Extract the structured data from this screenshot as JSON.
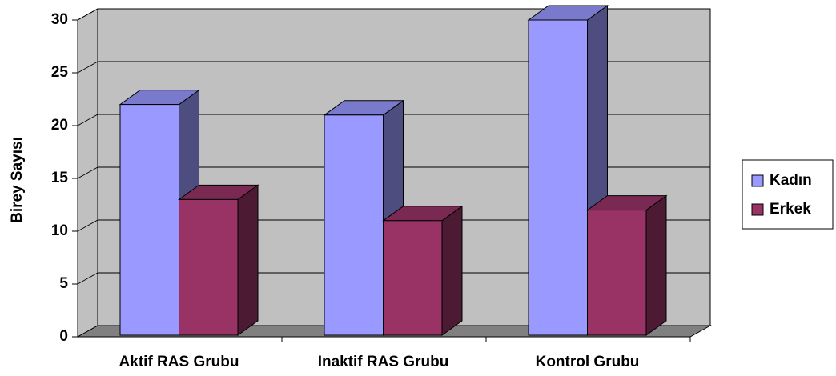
{
  "chart_data": {
    "type": "bar3d",
    "categories": [
      "Aktif RAS Grubu",
      "Inaktif RAS Grubu",
      "Kontrol Grubu"
    ],
    "series": [
      {
        "name": "Kadın",
        "color": "#9999ff",
        "values": [
          22,
          21,
          30
        ]
      },
      {
        "name": "Erkek",
        "color": "#993366",
        "values": [
          13,
          11,
          12
        ]
      }
    ],
    "y_label": "Birey Sayısı",
    "ylim": [
      0,
      30
    ],
    "yticks": [
      0,
      5,
      10,
      15,
      20,
      25,
      30
    ],
    "grid": true,
    "legend": "right"
  }
}
